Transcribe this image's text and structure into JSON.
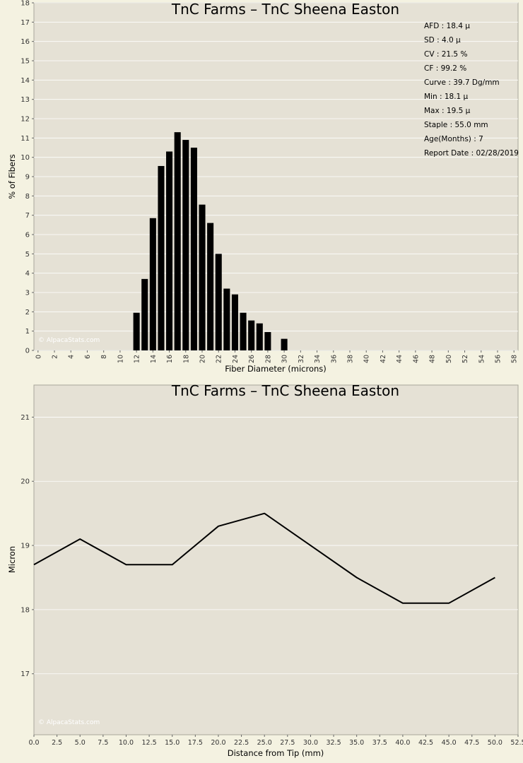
{
  "page": {
    "background": "#f4f2e1",
    "plot_background": "#e5e1d5",
    "grid_color": "#ffffff",
    "bar_color": "#000000",
    "line_color": "#000000",
    "watermark_color": "#ffffff"
  },
  "chart_data": [
    {
      "type": "bar",
      "title": "TnC Farms – TnC Sheena Easton",
      "xlabel": "Fiber Diameter (microns)",
      "ylabel": "% of Fibers",
      "watermark": "© AlpacaStats.com",
      "xlim": [
        -0.5,
        58.5
      ],
      "ylim": [
        0,
        18
      ],
      "xticks": [
        0,
        2,
        4,
        6,
        8,
        10,
        12,
        14,
        16,
        18,
        20,
        22,
        24,
        26,
        28,
        30,
        32,
        34,
        36,
        38,
        40,
        42,
        44,
        46,
        48,
        50,
        52,
        54,
        56,
        58
      ],
      "yticks": [
        0,
        1,
        2,
        3,
        4,
        5,
        6,
        7,
        8,
        9,
        10,
        11,
        12,
        13,
        14,
        15,
        16,
        17,
        18
      ],
      "grid": "horizontal",
      "x": [
        12,
        13,
        14,
        15,
        16,
        17,
        18,
        19,
        20,
        21,
        22,
        23,
        24,
        25,
        26,
        27,
        28,
        30
      ],
      "values": [
        1.95,
        3.7,
        6.85,
        9.55,
        10.3,
        11.3,
        10.9,
        10.5,
        7.55,
        6.6,
        5.0,
        3.2,
        2.9,
        1.95,
        1.55,
        1.4,
        0.95,
        0.6
      ],
      "stats": [
        "AFD : 18.4 µ",
        "SD : 4.0 µ",
        "CV : 21.5 %",
        "CF : 99.2 %",
        "Curve : 39.7 Dg/mm",
        "Min : 18.1 µ",
        "Max : 19.5 µ",
        "Staple : 55.0 mm",
        "Age(Months) : 7",
        "Report Date : 02/28/2019"
      ]
    },
    {
      "type": "line",
      "title": "TnC Farms – TnC Sheena Easton",
      "xlabel": "Distance from Tip (mm)",
      "ylabel": "Micron",
      "watermark": "© AlpacaStats.com",
      "xlim": [
        0,
        52.5
      ],
      "ylim": [
        16.05,
        21.5
      ],
      "xticks": [
        "0.0",
        "2.5",
        "5.0",
        "7.5",
        "10.0",
        "12.5",
        "15.0",
        "17.5",
        "20.0",
        "22.5",
        "25.0",
        "27.5",
        "30.0",
        "32.5",
        "35.0",
        "37.5",
        "40.0",
        "42.5",
        "45.0",
        "47.5",
        "50.0",
        "52.5"
      ],
      "yticks": [
        17,
        18,
        19,
        20,
        21
      ],
      "grid": "horizontal",
      "x": [
        0,
        5,
        10,
        15,
        20,
        25,
        30,
        35,
        40,
        45,
        50
      ],
      "y": [
        18.7,
        19.1,
        18.7,
        18.7,
        19.3,
        19.5,
        19.0,
        18.5,
        18.1,
        18.1,
        18.5
      ]
    }
  ]
}
